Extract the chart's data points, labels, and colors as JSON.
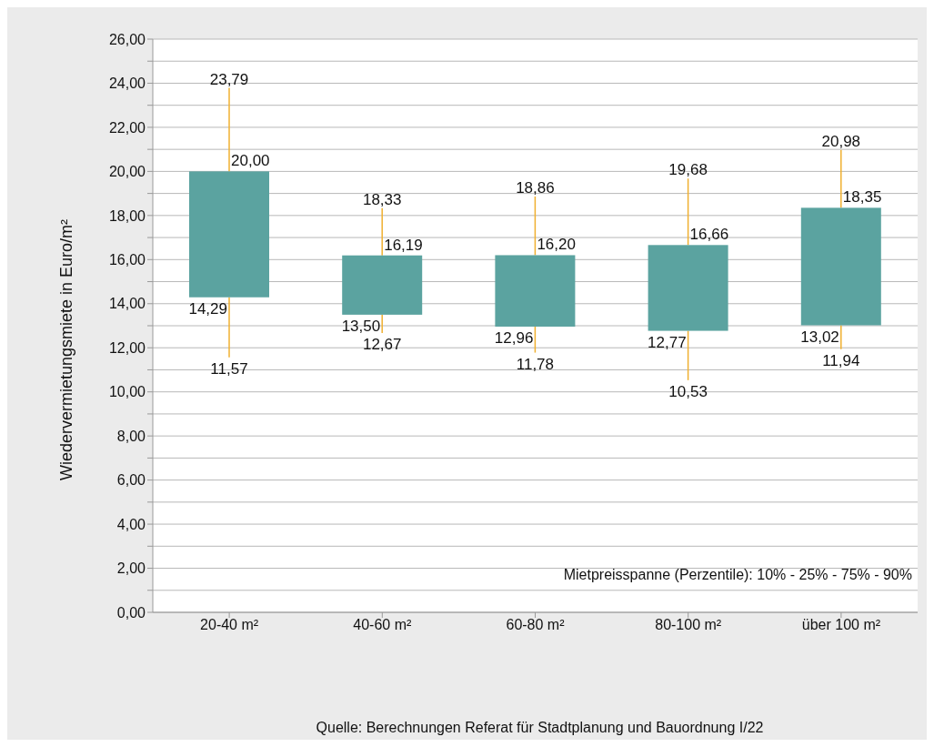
{
  "chart_data": {
    "type": "box",
    "ylabel": "Wiedervermietungsmiete in Euro/m²",
    "categories": [
      "20-40 m²",
      "40-60 m²",
      "60-80 m²",
      "80-100 m²",
      "über 100 m²"
    ],
    "boxes": [
      {
        "low": 11.57,
        "q1": 14.29,
        "q3": 20.0,
        "high": 23.79
      },
      {
        "low": 12.67,
        "q1": 13.5,
        "q3": 16.19,
        "high": 18.33
      },
      {
        "low": 11.78,
        "q1": 12.96,
        "q3": 16.2,
        "high": 18.86
      },
      {
        "low": 10.53,
        "q1": 12.77,
        "q3": 16.66,
        "high": 19.68
      },
      {
        "low": 11.94,
        "q1": 13.02,
        "q3": 18.35,
        "high": 20.98
      }
    ],
    "color": "#5ba3a0",
    "grid": "y",
    "value_labels": [
      [
        "11,57",
        "14,29",
        "20,00",
        "23,79"
      ],
      [
        "12,67",
        "13,50",
        "16,19",
        "18,33"
      ],
      [
        "11,78",
        "12,96",
        "16,20",
        "18,86"
      ],
      [
        "10,53",
        "12,77",
        "16,66",
        "19,68"
      ],
      [
        "11,94",
        "13,02",
        "18,35",
        "20,98"
      ]
    ],
    "ylim": [
      0,
      26
    ],
    "yticks": [
      {
        "value": 0,
        "label": "0,00"
      },
      {
        "value": 1,
        "label": null
      },
      {
        "value": 2,
        "label": "2,00"
      },
      {
        "value": 3,
        "label": null
      },
      {
        "value": 4,
        "label": "4,00"
      },
      {
        "value": 5,
        "label": null
      },
      {
        "value": 6,
        "label": "6,00"
      },
      {
        "value": 7,
        "label": null
      },
      {
        "value": 8,
        "label": "8,00"
      },
      {
        "value": 9,
        "label": null
      },
      {
        "value": 10,
        "label": "10,00"
      },
      {
        "value": 11,
        "label": null
      },
      {
        "value": 12,
        "label": "12,00"
      },
      {
        "value": 13,
        "label": null
      },
      {
        "value": 14,
        "label": "14,00"
      },
      {
        "value": 15,
        "label": null
      },
      {
        "value": 16,
        "label": "16,00"
      },
      {
        "value": 17,
        "label": null
      },
      {
        "value": 18,
        "label": "18,00"
      },
      {
        "value": 19,
        "label": null
      },
      {
        "value": 20,
        "label": "20,00"
      },
      {
        "value": 21,
        "label": null
      },
      {
        "value": 22,
        "label": "22,00"
      },
      {
        "value": 23,
        "label": null
      },
      {
        "value": 24,
        "label": "24,00"
      },
      {
        "value": 25,
        "label": null
      },
      {
        "value": 26,
        "label": "26,00"
      }
    ],
    "annotations": [
      "Mietpreisspanne (Perzentile): 10% - 25% - 75% - 90%",
      "Quelle: Berechnungen Referat für Stadtplanung und Bauordnung I/22"
    ]
  }
}
